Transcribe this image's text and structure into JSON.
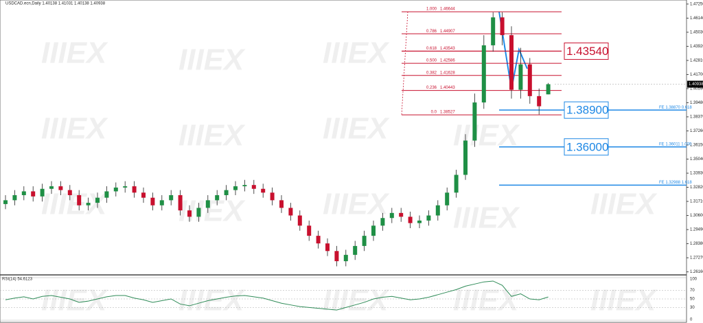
{
  "header": "USDCAD.ecn,Daily  1.40138 1.41031 1.40138 1.40938",
  "watermark": "IIIEX",
  "chart_data": [
    {
      "type": "candlestick",
      "up_color": "#1f8f45",
      "down_color": "#c8102e",
      "open": [
        1.315,
        1.318,
        1.322,
        1.325,
        1.321,
        1.327,
        1.329,
        1.326,
        1.322,
        1.314,
        1.316,
        1.32,
        1.325,
        1.328,
        1.329,
        1.324,
        1.32,
        1.314,
        1.318,
        1.322,
        1.31,
        1.305,
        1.312,
        1.318,
        1.322,
        1.326,
        1.329,
        1.33,
        1.327,
        1.324,
        1.318,
        1.312,
        1.306,
        1.298,
        1.29,
        1.284,
        1.278,
        1.27,
        1.275,
        1.282,
        1.29,
        1.298,
        1.304,
        1.308,
        1.305,
        1.3,
        1.302,
        1.306,
        1.314,
        1.324,
        1.338,
        1.365,
        1.395,
        1.44,
        1.462,
        1.448,
        1.405,
        1.425,
        1.4,
        1.40138
      ],
      "high": [
        1.322,
        1.326,
        1.329,
        1.329,
        1.331,
        1.333,
        1.333,
        1.33,
        1.326,
        1.32,
        1.324,
        1.329,
        1.332,
        1.333,
        1.333,
        1.328,
        1.324,
        1.322,
        1.326,
        1.326,
        1.314,
        1.316,
        1.322,
        1.326,
        1.33,
        1.333,
        1.334,
        1.334,
        1.331,
        1.328,
        1.322,
        1.316,
        1.31,
        1.302,
        1.294,
        1.288,
        1.282,
        1.279,
        1.286,
        1.294,
        1.302,
        1.308,
        1.312,
        1.312,
        1.309,
        1.306,
        1.31,
        1.318,
        1.328,
        1.342,
        1.37,
        1.402,
        1.448,
        1.466,
        1.466,
        1.455,
        1.438,
        1.43,
        1.406,
        1.41031
      ],
      "low": [
        1.311,
        1.314,
        1.318,
        1.317,
        1.317,
        1.323,
        1.322,
        1.318,
        1.31,
        1.31,
        1.312,
        1.316,
        1.321,
        1.324,
        1.32,
        1.316,
        1.31,
        1.31,
        1.314,
        1.306,
        1.301,
        1.301,
        1.308,
        1.314,
        1.318,
        1.322,
        1.325,
        1.323,
        1.32,
        1.314,
        1.308,
        1.302,
        1.294,
        1.286,
        1.28,
        1.274,
        1.266,
        1.266,
        1.271,
        1.278,
        1.286,
        1.294,
        1.3,
        1.301,
        1.296,
        1.296,
        1.298,
        1.302,
        1.31,
        1.32,
        1.334,
        1.36,
        1.39,
        1.435,
        1.44,
        1.398,
        1.398,
        1.394,
        1.3855,
        1.40138
      ],
      "close": [
        1.318,
        1.322,
        1.325,
        1.321,
        1.327,
        1.329,
        1.326,
        1.322,
        1.314,
        1.316,
        1.32,
        1.325,
        1.328,
        1.329,
        1.324,
        1.32,
        1.314,
        1.318,
        1.322,
        1.31,
        1.305,
        1.312,
        1.318,
        1.322,
        1.326,
        1.329,
        1.33,
        1.327,
        1.324,
        1.318,
        1.312,
        1.306,
        1.298,
        1.29,
        1.284,
        1.278,
        1.27,
        1.275,
        1.282,
        1.29,
        1.298,
        1.304,
        1.308,
        1.305,
        1.3,
        1.302,
        1.306,
        1.314,
        1.324,
        1.338,
        1.365,
        1.395,
        1.44,
        1.462,
        1.448,
        1.405,
        1.425,
        1.4,
        1.392,
        1.40938
      ],
      "ylim": [
        1.2603,
        1.4746
      ],
      "yticks": [
        {
          "value": 1.4725,
          "label": "1.47250"
        },
        {
          "value": 1.4614,
          "label": "1.46140"
        },
        {
          "value": 1.4503,
          "label": "1.45030"
        },
        {
          "value": 1.4392,
          "label": "1.43920"
        },
        {
          "value": 1.4281,
          "label": "1.42810"
        },
        {
          "value": 1.417,
          "label": "1.41700"
        },
        {
          "value": 1.4059,
          "label": "1.40590"
        },
        {
          "value": 1.3948,
          "label": "1.39480"
        },
        {
          "value": 1.3837,
          "label": "1.38370"
        },
        {
          "value": 1.3726,
          "label": "1.37260"
        },
        {
          "value": 1.3615,
          "label": "1.36150"
        },
        {
          "value": 1.3504,
          "label": "1.35040"
        },
        {
          "value": 1.3393,
          "label": "1.33930"
        },
        {
          "value": 1.3282,
          "label": "1.32820"
        },
        {
          "value": 1.3171,
          "label": "1.31710"
        },
        {
          "value": 1.306,
          "label": "1.30600"
        },
        {
          "value": 1.2949,
          "label": "1.29490"
        },
        {
          "value": 1.2838,
          "label": "1.28380"
        },
        {
          "value": 1.2727,
          "label": "1.27270"
        },
        {
          "value": 1.2616,
          "label": "1.26160"
        }
      ],
      "last_price": {
        "value": 1.40938,
        "label": "1.40938"
      },
      "fib_color": "#c8102e",
      "fib_levels": [
        {
          "ratio": "1.000",
          "value": 1.46644,
          "label": "1.46644"
        },
        {
          "ratio": "0.786",
          "value": 1.44907,
          "label": "1.44907"
        },
        {
          "ratio": "0.618",
          "value": 1.43543,
          "label": "1.43543"
        },
        {
          "ratio": "0.500",
          "value": 1.42586,
          "label": "1.42586"
        },
        {
          "ratio": "0.382",
          "value": 1.41628,
          "label": "1.41628"
        },
        {
          "ratio": "0.236",
          "value": 1.40443,
          "label": "1.40443"
        },
        {
          "ratio": "0.0",
          "value": 1.38527,
          "label": "1.38527"
        }
      ],
      "resistance": {
        "value": 1.4354,
        "label": "1.43540",
        "color": "#c8102e"
      },
      "supports_color": "#1e88e5",
      "supports": [
        {
          "value": 1.389,
          "label": "1.38900",
          "note": "FE 1.38870 0.618"
        },
        {
          "value": 1.36,
          "label": "1.36000",
          "note": "FE 1.36011 1.000"
        },
        {
          "value": 1.32988,
          "label": null,
          "note": "FE 1.32988 1.618"
        }
      ]
    },
    {
      "type": "line",
      "title": "RSI(14) 54.6123",
      "color": "#2e8b57",
      "values": [
        48,
        52,
        55,
        50,
        56,
        58,
        54,
        50,
        42,
        45,
        50,
        55,
        58,
        58,
        52,
        48,
        42,
        46,
        50,
        38,
        34,
        40,
        46,
        50,
        54,
        57,
        58,
        55,
        52,
        46,
        40,
        36,
        32,
        30,
        28,
        26,
        24,
        30,
        36,
        42,
        50,
        54,
        56,
        52,
        48,
        50,
        54,
        60,
        66,
        72,
        80,
        85,
        90,
        92,
        82,
        56,
        62,
        50,
        48,
        54.6123
      ],
      "ylim": [
        0,
        100
      ],
      "yticks": [
        100,
        70,
        50,
        30,
        0
      ]
    }
  ]
}
